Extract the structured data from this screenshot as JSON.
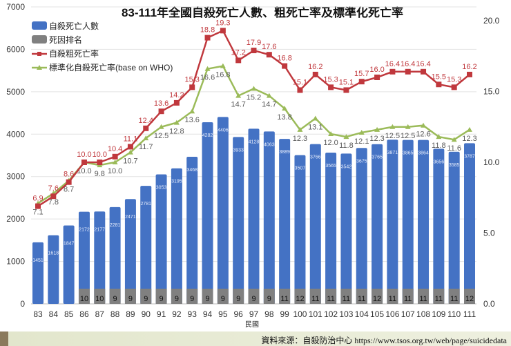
{
  "source_text": "資料來源：自殺防治中心 https://www.tsos.org.tw/web/page/suicidedata",
  "chart_data": {
    "type": "bar+line",
    "title": "83-111年全國自殺死亡人數、粗死亡率及標準化死亡率",
    "xlabel": "民國",
    "categories": [
      "83",
      "84",
      "85",
      "86",
      "87",
      "88",
      "89",
      "90",
      "91",
      "92",
      "93",
      "94",
      "95",
      "96",
      "97",
      "98",
      "99",
      "100",
      "101",
      "102",
      "103",
      "104",
      "105",
      "106",
      "107",
      "108",
      "109",
      "110",
      "111"
    ],
    "left_axis": {
      "range": [
        0,
        7000
      ],
      "ticks": [
        "0",
        "1000",
        "2000",
        "3000",
        "4000",
        "5000",
        "6000",
        "7000"
      ]
    },
    "right_axis": {
      "range": [
        0,
        20
      ],
      "ticks": [
        "0.0",
        "5.0",
        "10.0",
        "15.0",
        "20.0"
      ]
    },
    "grid": true,
    "legend_placement": "top-left",
    "series": [
      {
        "name": "自殺死亡人數",
        "type": "bar",
        "axis": "left",
        "color": "#4472c4",
        "values": [
          1451,
          1618,
          1847,
          2172,
          2177,
          2281,
          2471,
          2781,
          3053,
          3195,
          3468,
          4282,
          4406,
          3933,
          4128,
          4063,
          3889,
          3507,
          3766,
          3565,
          3542,
          3675,
          3765,
          3871,
          3865,
          3864,
          3656,
          3585,
          3787
        ]
      },
      {
        "name": "死因排名",
        "type": "bar",
        "color": "#808080",
        "values": [
          null,
          null,
          null,
          10,
          10,
          9,
          9,
          9,
          9,
          9,
          9,
          9,
          9,
          9,
          9,
          9,
          11,
          12,
          11,
          11,
          11,
          11,
          12,
          11,
          11,
          11,
          11,
          11,
          12
        ]
      },
      {
        "name": "自殺粗死亡率",
        "type": "line",
        "axis": "right",
        "color": "#c0383d",
        "values": [
          6.9,
          7.6,
          8.6,
          10.0,
          10.0,
          10.4,
          11.1,
          12.4,
          13.6,
          14.2,
          15.3,
          18.8,
          19.3,
          17.2,
          17.9,
          17.6,
          16.8,
          15.1,
          16.2,
          15.3,
          15.1,
          15.7,
          16.0,
          16.4,
          16.4,
          16.4,
          15.5,
          15.3,
          16.2
        ]
      },
      {
        "name": "標準化自殺死亡率(base on WHO)",
        "type": "line",
        "axis": "right",
        "color": "#9bbb59",
        "values": [
          7.1,
          7.8,
          8.7,
          10.0,
          9.8,
          10.0,
          10.7,
          11.7,
          12.5,
          12.8,
          13.6,
          16.6,
          16.8,
          14.7,
          15.2,
          14.7,
          13.8,
          12.3,
          13.1,
          12.0,
          11.8,
          12.1,
          12.3,
          12.5,
          12.5,
          12.6,
          11.8,
          11.6,
          12.3
        ]
      }
    ]
  }
}
